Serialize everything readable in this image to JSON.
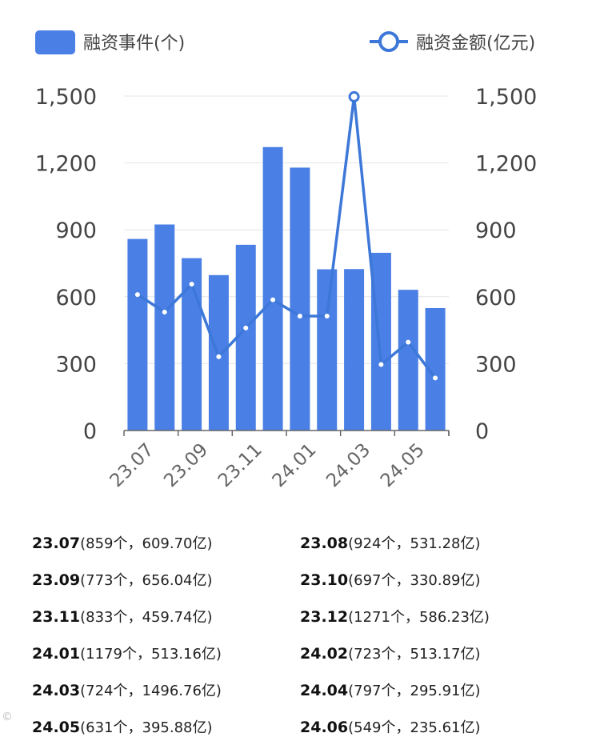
{
  "chart_data": {
    "type": "bar+line",
    "categories": [
      "23.07",
      "23.08",
      "23.09",
      "23.10",
      "23.11",
      "23.12",
      "24.01",
      "24.02",
      "24.03",
      "24.04",
      "24.05",
      "24.06"
    ],
    "x_tick_labels": [
      "23.07",
      "23.09",
      "23.11",
      "24.01",
      "24.03",
      "24.05"
    ],
    "series": [
      {
        "name": "融资事件(个)",
        "type": "bar",
        "axis": "left",
        "values": [
          859,
          924,
          773,
          697,
          833,
          1271,
          1179,
          723,
          724,
          797,
          631,
          549
        ]
      },
      {
        "name": "融资金额(亿元)",
        "type": "line",
        "axis": "right",
        "values": [
          609.7,
          531.28,
          656.04,
          330.89,
          459.74,
          586.23,
          513.16,
          513.17,
          1496.76,
          295.91,
          395.88,
          235.61
        ]
      }
    ],
    "y_left": {
      "ticks": [
        "0",
        "300",
        "600",
        "900",
        "1,200",
        "1,500"
      ],
      "ylim": [
        0,
        1500
      ]
    },
    "y_right": {
      "ticks": [
        "0",
        "300",
        "600",
        "900",
        "1,200",
        "1,500"
      ],
      "ylim": [
        0,
        1500
      ]
    },
    "grid": true,
    "legend_position": "top",
    "colors": {
      "bar": "#4a7fe5",
      "line": "#3d78d8",
      "grid": "#e6e6e6",
      "axis": "#666666"
    }
  },
  "summary": [
    {
      "month": "23.07",
      "detail": "(859个，609.70亿)"
    },
    {
      "month": "23.08",
      "detail": "(924个，531.28亿)"
    },
    {
      "month": "23.09",
      "detail": "(773个，656.04亿)"
    },
    {
      "month": "23.10",
      "detail": "(697个，330.89亿)"
    },
    {
      "month": "23.11",
      "detail": "(833个，459.74亿)"
    },
    {
      "month": "23.12",
      "detail": "(1271个，586.23亿)"
    },
    {
      "month": "24.01",
      "detail": "(1179个，513.16亿)"
    },
    {
      "month": "24.02",
      "detail": "(723个，513.17亿)"
    },
    {
      "month": "24.03",
      "detail": "(724个，1496.76亿)"
    },
    {
      "month": "24.04",
      "detail": "(797个，295.91亿)"
    },
    {
      "month": "24.05",
      "detail": "(631个，395.88亿)"
    },
    {
      "month": "24.06",
      "detail": "(549个，235.61亿)"
    }
  ],
  "watermark": "©"
}
